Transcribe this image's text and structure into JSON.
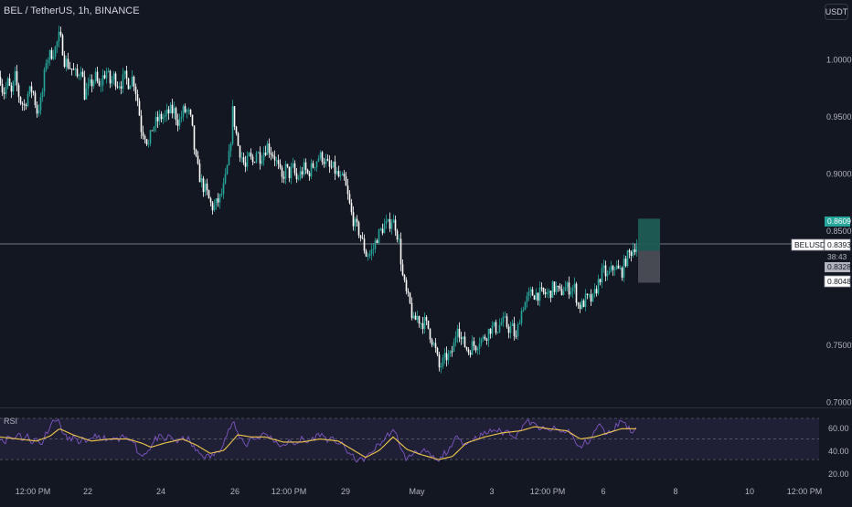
{
  "header": {
    "symbol_title": "BEL / TetherUS, 1h, BINANCE",
    "currency": "USDT"
  },
  "colors": {
    "background": "#131722",
    "up": "#26a69a",
    "down": "#ffffff",
    "rsi_line": "#7e57c2",
    "rsi_ma": "#f2c94c",
    "axis_text": "#b2b5be"
  },
  "chart_data": {
    "type": "candlestick",
    "title": "BEL / TetherUS, 1h, BINANCE",
    "x_ticks": [
      "12:00 PM",
      "22",
      "24",
      "26",
      "12:00 PM",
      "29",
      "May",
      "3",
      "12:00 PM",
      "6",
      "8",
      "10",
      "12:00 PM"
    ],
    "y_ticks": [
      "1.0000",
      "0.9500",
      "0.9000",
      "0.8500",
      "0.7500",
      "0.7000"
    ],
    "ylim": [
      0.6955,
      1.0525
    ],
    "price_path": [
      [
        0,
        0.985
      ],
      [
        3,
        0.97
      ],
      [
        8,
        0.98
      ],
      [
        12,
        0.97
      ],
      [
        16,
        0.985
      ],
      [
        21,
        0.965
      ],
      [
        26,
        0.96
      ],
      [
        30,
        0.97
      ],
      [
        35,
        0.975
      ],
      [
        40,
        0.955
      ],
      [
        45,
        0.965
      ],
      [
        50,
        1.0
      ],
      [
        55,
        1.005
      ],
      [
        60,
        1.01
      ],
      [
        64,
        1.02
      ],
      [
        67,
        1.015
      ],
      [
        70,
        1.0
      ],
      [
        75,
        0.995
      ],
      [
        80,
        0.99
      ],
      [
        84,
        0.985
      ],
      [
        88,
        0.995
      ],
      [
        92,
        0.97
      ],
      [
        96,
        0.975
      ],
      [
        100,
        0.98
      ],
      [
        104,
        0.985
      ],
      [
        108,
        0.975
      ],
      [
        112,
        0.985
      ],
      [
        116,
        0.99
      ],
      [
        120,
        0.98
      ],
      [
        124,
        0.985
      ],
      [
        128,
        0.98
      ],
      [
        132,
        0.98
      ],
      [
        136,
        0.985
      ],
      [
        140,
        0.98
      ],
      [
        145,
        0.985
      ],
      [
        150,
        0.965
      ],
      [
        154,
        0.94
      ],
      [
        158,
        0.935
      ],
      [
        162,
        0.925
      ],
      [
        166,
        0.94
      ],
      [
        170,
        0.945
      ],
      [
        175,
        0.95
      ],
      [
        180,
        0.95
      ],
      [
        185,
        0.955
      ],
      [
        190,
        0.955
      ],
      [
        195,
        0.945
      ],
      [
        200,
        0.955
      ],
      [
        205,
        0.955
      ],
      [
        209,
        0.945
      ],
      [
        213,
        0.915
      ],
      [
        217,
        0.9
      ],
      [
        221,
        0.89
      ],
      [
        225,
        0.885
      ],
      [
        229,
        0.875
      ],
      [
        233,
        0.87
      ],
      [
        237,
        0.875
      ],
      [
        241,
        0.88
      ],
      [
        245,
        0.89
      ],
      [
        248,
        0.905
      ],
      [
        251,
        0.92
      ],
      [
        254,
        0.955
      ],
      [
        256,
        0.945
      ],
      [
        260,
        0.925
      ],
      [
        264,
        0.915
      ],
      [
        268,
        0.905
      ],
      [
        272,
        0.915
      ],
      [
        276,
        0.91
      ],
      [
        280,
        0.92
      ],
      [
        284,
        0.915
      ],
      [
        288,
        0.92
      ],
      [
        292,
        0.925
      ],
      [
        296,
        0.92
      ],
      [
        300,
        0.915
      ],
      [
        304,
        0.905
      ],
      [
        308,
        0.895
      ],
      [
        312,
        0.905
      ],
      [
        316,
        0.9
      ],
      [
        320,
        0.905
      ],
      [
        324,
        0.895
      ],
      [
        328,
        0.9
      ],
      [
        332,
        0.905
      ],
      [
        336,
        0.9
      ],
      [
        340,
        0.905
      ],
      [
        344,
        0.91
      ],
      [
        348,
        0.915
      ],
      [
        352,
        0.915
      ],
      [
        356,
        0.91
      ],
      [
        360,
        0.905
      ],
      [
        364,
        0.905
      ],
      [
        368,
        0.9
      ],
      [
        372,
        0.895
      ],
      [
        376,
        0.895
      ],
      [
        380,
        0.88
      ],
      [
        384,
        0.865
      ],
      [
        388,
        0.855
      ],
      [
        392,
        0.85
      ],
      [
        396,
        0.84
      ],
      [
        400,
        0.83
      ],
      [
        404,
        0.83
      ],
      [
        408,
        0.835
      ],
      [
        412,
        0.845
      ],
      [
        416,
        0.85
      ],
      [
        420,
        0.855
      ],
      [
        424,
        0.855
      ],
      [
        428,
        0.86
      ],
      [
        432,
        0.855
      ],
      [
        436,
        0.84
      ],
      [
        440,
        0.81
      ],
      [
        444,
        0.795
      ],
      [
        448,
        0.785
      ],
      [
        452,
        0.77
      ],
      [
        456,
        0.775
      ],
      [
        460,
        0.77
      ],
      [
        464,
        0.77
      ],
      [
        468,
        0.765
      ],
      [
        472,
        0.755
      ],
      [
        476,
        0.745
      ],
      [
        480,
        0.73
      ],
      [
        484,
        0.735
      ],
      [
        488,
        0.74
      ],
      [
        492,
        0.74
      ],
      [
        496,
        0.75
      ],
      [
        500,
        0.77
      ],
      [
        504,
        0.755
      ],
      [
        508,
        0.75
      ],
      [
        512,
        0.745
      ],
      [
        516,
        0.75
      ],
      [
        520,
        0.75
      ],
      [
        524,
        0.755
      ],
      [
        528,
        0.755
      ],
      [
        532,
        0.76
      ],
      [
        536,
        0.765
      ],
      [
        540,
        0.765
      ],
      [
        544,
        0.765
      ],
      [
        548,
        0.77
      ],
      [
        552,
        0.77
      ],
      [
        556,
        0.765
      ],
      [
        560,
        0.765
      ],
      [
        564,
        0.755
      ],
      [
        568,
        0.775
      ],
      [
        572,
        0.785
      ],
      [
        576,
        0.79
      ],
      [
        580,
        0.795
      ],
      [
        584,
        0.795
      ],
      [
        588,
        0.795
      ],
      [
        592,
        0.795
      ],
      [
        596,
        0.795
      ],
      [
        600,
        0.795
      ],
      [
        604,
        0.8
      ],
      [
        608,
        0.8
      ],
      [
        612,
        0.795
      ],
      [
        616,
        0.8
      ],
      [
        620,
        0.8
      ],
      [
        624,
        0.8
      ],
      [
        628,
        0.8
      ],
      [
        632,
        0.785
      ],
      [
        636,
        0.785
      ],
      [
        640,
        0.79
      ],
      [
        644,
        0.79
      ],
      [
        648,
        0.79
      ],
      [
        652,
        0.8
      ],
      [
        656,
        0.81
      ],
      [
        660,
        0.815
      ],
      [
        664,
        0.81
      ],
      [
        668,
        0.815
      ],
      [
        672,
        0.82
      ],
      [
        676,
        0.815
      ],
      [
        680,
        0.815
      ],
      [
        684,
        0.825
      ],
      [
        688,
        0.83
      ],
      [
        692,
        0.835
      ],
      [
        696,
        0.839
      ]
    ],
    "last_price": "0.8393",
    "countdown": "38:43",
    "pair_label": "BELUSDT",
    "position": {
      "target_label": "0.8609",
      "target": 0.8609,
      "entry_label": "0.8328",
      "entry": 0.8328,
      "stop_label": "0.8048",
      "stop": 0.8048
    },
    "rsi": {
      "label": "RSI",
      "y_ticks": [
        "60.00",
        "40.00",
        "20.00"
      ],
      "ylim": [
        15,
        78
      ],
      "band": [
        30,
        70
      ],
      "mid": 50,
      "line_path": [
        [
          0,
          52
        ],
        [
          5,
          47
        ],
        [
          10,
          53
        ],
        [
          15,
          49
        ],
        [
          20,
          57
        ],
        [
          25,
          49
        ],
        [
          30,
          53
        ],
        [
          35,
          47
        ],
        [
          40,
          50
        ],
        [
          45,
          44
        ],
        [
          50,
          55
        ],
        [
          55,
          63
        ],
        [
          60,
          70
        ],
        [
          65,
          66
        ],
        [
          70,
          54
        ],
        [
          75,
          49
        ],
        [
          80,
          52
        ],
        [
          85,
          46
        ],
        [
          90,
          50
        ],
        [
          95,
          44
        ],
        [
          100,
          51
        ],
        [
          105,
          55
        ],
        [
          110,
          48
        ],
        [
          115,
          52
        ],
        [
          120,
          47
        ],
        [
          125,
          51
        ],
        [
          130,
          48
        ],
        [
          135,
          52
        ],
        [
          140,
          49
        ],
        [
          145,
          52
        ],
        [
          150,
          39
        ],
        [
          155,
          33
        ],
        [
          160,
          38
        ],
        [
          165,
          42
        ],
        [
          170,
          50
        ],
        [
          175,
          52
        ],
        [
          180,
          48
        ],
        [
          185,
          53
        ],
        [
          190,
          50
        ],
        [
          195,
          47
        ],
        [
          200,
          50
        ],
        [
          205,
          51
        ],
        [
          210,
          44
        ],
        [
          215,
          38
        ],
        [
          220,
          35
        ],
        [
          225,
          33
        ],
        [
          230,
          33
        ],
        [
          235,
          35
        ],
        [
          240,
          40
        ],
        [
          245,
          48
        ],
        [
          250,
          58
        ],
        [
          255,
          66
        ],
        [
          260,
          55
        ],
        [
          265,
          49
        ],
        [
          270,
          44
        ],
        [
          275,
          52
        ],
        [
          280,
          50
        ],
        [
          285,
          53
        ],
        [
          290,
          55
        ],
        [
          295,
          52
        ],
        [
          300,
          49
        ],
        [
          305,
          45
        ],
        [
          310,
          42
        ],
        [
          315,
          48
        ],
        [
          320,
          45
        ],
        [
          325,
          47
        ],
        [
          330,
          50
        ],
        [
          335,
          46
        ],
        [
          340,
          49
        ],
        [
          345,
          52
        ],
        [
          350,
          55
        ],
        [
          355,
          52
        ],
        [
          360,
          48
        ],
        [
          365,
          50
        ],
        [
          370,
          46
        ],
        [
          375,
          44
        ],
        [
          380,
          38
        ],
        [
          385,
          33
        ],
        [
          390,
          30
        ],
        [
          395,
          29
        ],
        [
          400,
          32
        ],
        [
          405,
          35
        ],
        [
          410,
          41
        ],
        [
          415,
          45
        ],
        [
          420,
          49
        ],
        [
          425,
          55
        ],
        [
          430,
          57
        ],
        [
          435,
          52
        ],
        [
          440,
          37
        ],
        [
          445,
          30
        ],
        [
          450,
          34
        ],
        [
          455,
          40
        ],
        [
          460,
          36
        ],
        [
          465,
          38
        ],
        [
          470,
          34
        ],
        [
          475,
          31
        ],
        [
          480,
          27
        ],
        [
          485,
          36
        ],
        [
          490,
          38
        ],
        [
          495,
          42
        ],
        [
          500,
          56
        ],
        [
          505,
          48
        ],
        [
          510,
          44
        ],
        [
          515,
          49
        ],
        [
          520,
          51
        ],
        [
          525,
          53
        ],
        [
          530,
          55
        ],
        [
          535,
          57
        ],
        [
          540,
          59
        ],
        [
          545,
          58
        ],
        [
          550,
          56
        ],
        [
          555,
          58
        ],
        [
          560,
          55
        ],
        [
          565,
          52
        ],
        [
          570,
          61
        ],
        [
          575,
          67
        ],
        [
          580,
          66
        ],
        [
          585,
          63
        ],
        [
          590,
          61
        ],
        [
          595,
          59
        ],
        [
          600,
          58
        ],
        [
          605,
          60
        ],
        [
          610,
          59
        ],
        [
          615,
          56
        ],
        [
          620,
          58
        ],
        [
          625,
          57
        ],
        [
          630,
          44
        ],
        [
          635,
          41
        ],
        [
          640,
          47
        ],
        [
          645,
          48
        ],
        [
          650,
          56
        ],
        [
          655,
          65
        ],
        [
          660,
          58
        ],
        [
          665,
          55
        ],
        [
          670,
          59
        ],
        [
          675,
          64
        ],
        [
          680,
          68
        ],
        [
          685,
          64
        ],
        [
          690,
          57
        ],
        [
          696,
          61
        ]
      ],
      "ma_path": [
        [
          0,
          52
        ],
        [
          20,
          50
        ],
        [
          40,
          48
        ],
        [
          55,
          53
        ],
        [
          65,
          60
        ],
        [
          80,
          54
        ],
        [
          100,
          48
        ],
        [
          120,
          50
        ],
        [
          140,
          50
        ],
        [
          155,
          46
        ],
        [
          165,
          42
        ],
        [
          180,
          46
        ],
        [
          200,
          50
        ],
        [
          215,
          44
        ],
        [
          230,
          36
        ],
        [
          245,
          39
        ],
        [
          260,
          54
        ],
        [
          275,
          52
        ],
        [
          290,
          52
        ],
        [
          310,
          47
        ],
        [
          330,
          47
        ],
        [
          350,
          50
        ],
        [
          370,
          48
        ],
        [
          385,
          40
        ],
        [
          400,
          32
        ],
        [
          415,
          39
        ],
        [
          430,
          52
        ],
        [
          445,
          40
        ],
        [
          460,
          35
        ],
        [
          480,
          30
        ],
        [
          495,
          33
        ],
        [
          510,
          46
        ],
        [
          530,
          52
        ],
        [
          550,
          56
        ],
        [
          570,
          58
        ],
        [
          585,
          62
        ],
        [
          600,
          60
        ],
        [
          620,
          58
        ],
        [
          635,
          50
        ],
        [
          650,
          52
        ],
        [
          665,
          56
        ],
        [
          680,
          60
        ],
        [
          696,
          60
        ]
      ]
    }
  }
}
